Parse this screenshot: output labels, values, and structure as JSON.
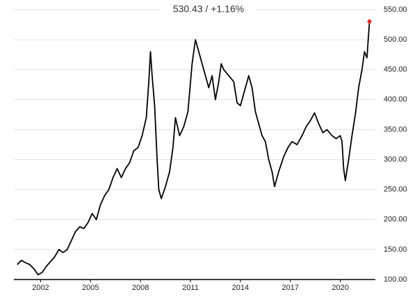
{
  "chart_data": {
    "type": "line",
    "title": "530.43 / +1.16%",
    "x": [
      2000.6,
      2000.85,
      2001.1,
      2001.35,
      2001.6,
      2001.85,
      2002.1,
      2002.35,
      2002.6,
      2002.85,
      2003.1,
      2003.35,
      2003.6,
      2003.85,
      2004.1,
      2004.35,
      2004.6,
      2004.85,
      2005.1,
      2005.35,
      2005.6,
      2005.85,
      2006.1,
      2006.35,
      2006.6,
      2006.85,
      2007.1,
      2007.35,
      2007.6,
      2007.85,
      2008.1,
      2008.35,
      2008.5,
      2008.6,
      2008.7,
      2008.85,
      2009.0,
      2009.1,
      2009.25,
      2009.5,
      2009.75,
      2009.95,
      2010.1,
      2010.35,
      2010.6,
      2010.85,
      2011.1,
      2011.3,
      2011.5,
      2011.7,
      2011.9,
      2012.1,
      2012.3,
      2012.5,
      2012.7,
      2012.85,
      2013.0,
      2013.3,
      2013.6,
      2013.8,
      2014.0,
      2014.3,
      2014.5,
      2014.7,
      2014.9,
      2015.1,
      2015.3,
      2015.5,
      2015.7,
      2015.9,
      2016.05,
      2016.3,
      2016.6,
      2016.85,
      2017.1,
      2017.4,
      2017.7,
      2017.95,
      2018.2,
      2018.45,
      2018.7,
      2018.95,
      2019.2,
      2019.5,
      2019.75,
      2020.0,
      2020.1,
      2020.2,
      2020.3,
      2020.5,
      2020.7,
      2020.9,
      2021.1,
      2021.3,
      2021.45,
      2021.6,
      2021.75
    ],
    "series": [
      {
        "color": "#000000",
        "values": [
          125,
          132,
          128,
          125,
          118,
          108,
          112,
          122,
          130,
          138,
          150,
          145,
          150,
          165,
          180,
          188,
          185,
          195,
          210,
          200,
          225,
          240,
          250,
          270,
          285,
          270,
          285,
          295,
          315,
          320,
          340,
          370,
          430,
          480,
          440,
          390,
          300,
          250,
          235,
          255,
          280,
          320,
          370,
          340,
          355,
          380,
          460,
          500,
          480,
          460,
          440,
          420,
          440,
          400,
          430,
          460,
          450,
          440,
          430,
          395,
          390,
          420,
          440,
          420,
          380,
          360,
          340,
          330,
          300,
          280,
          255,
          280,
          305,
          320,
          330,
          325,
          340,
          355,
          365,
          378,
          360,
          345,
          350,
          340,
          335,
          340,
          330,
          285,
          265,
          300,
          340,
          375,
          420,
          450,
          480,
          470,
          530.43
        ]
      }
    ],
    "last_point_color": "#e03030",
    "xlim": [
      2000.4,
      2022.1
    ],
    "xticks": [
      2002,
      2005,
      2008,
      2011,
      2014,
      2017,
      2020
    ],
    "ylim": [
      100,
      550
    ],
    "yticks": [
      {
        "value": 100,
        "label": "100.00"
      },
      {
        "value": 150,
        "label": "150.00"
      },
      {
        "value": 200,
        "label": "200.00"
      },
      {
        "value": 250,
        "label": "250.00"
      },
      {
        "value": 300,
        "label": "300.00"
      },
      {
        "value": 350,
        "label": "350.00"
      },
      {
        "value": 400,
        "label": "400.00"
      },
      {
        "value": 450,
        "label": "450.00"
      },
      {
        "value": 500,
        "label": "500.00"
      },
      {
        "value": 550,
        "label": "550.00"
      }
    ],
    "grid": true
  }
}
